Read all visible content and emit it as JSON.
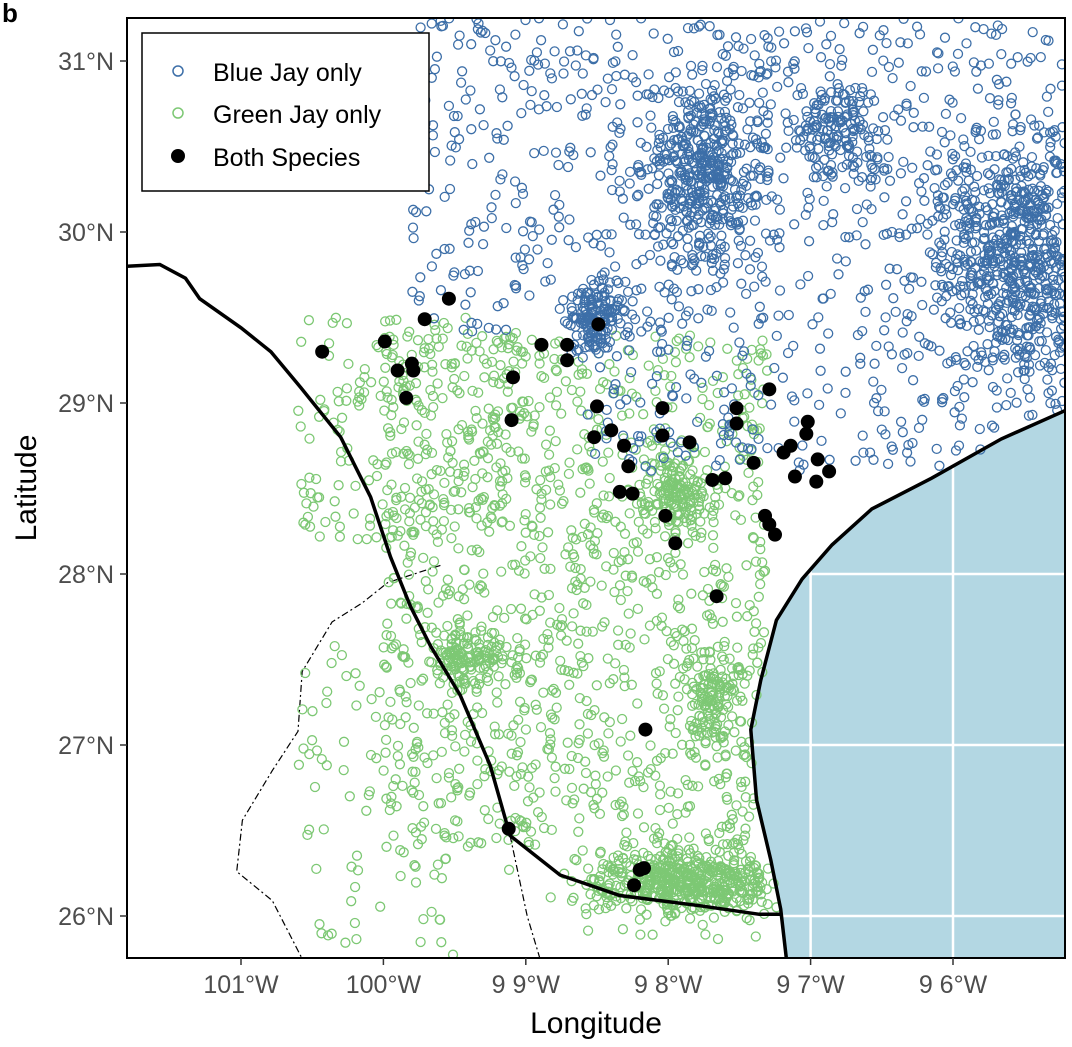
{
  "panel_label": "b",
  "chart_data": {
    "type": "scatter",
    "xlabel": "Longitude",
    "ylabel": "Latitude",
    "xlim": [
      -101.8,
      -95.2
    ],
    "ylim": [
      25.75,
      31.25
    ],
    "x_ticks": [
      {
        "value": -101,
        "label": "101°W"
      },
      {
        "value": -100,
        "label": "100°W"
      },
      {
        "value": -99,
        "label": "9 9°W"
      },
      {
        "value": -98,
        "label": "9 8°W"
      },
      {
        "value": -97,
        "label": "9 7°W"
      },
      {
        "value": -96,
        "label": "9 6°W"
      }
    ],
    "y_ticks": [
      {
        "value": 31,
        "label": "31°N"
      },
      {
        "value": 30,
        "label": "30°N"
      },
      {
        "value": 29,
        "label": "29°N"
      },
      {
        "value": 28,
        "label": "28°N"
      },
      {
        "value": 27,
        "label": "27°N"
      },
      {
        "value": 26,
        "label": "26°N"
      }
    ],
    "legend": {
      "placement": "top-left",
      "entries": [
        {
          "label": "Blue Jay only",
          "marker": "open-circle",
          "color": "#3d6fa8"
        },
        {
          "label": "Green Jay only",
          "marker": "open-circle",
          "color": "#7dc874"
        },
        {
          "label": "Both Species",
          "marker": "filled-circle",
          "color": "#000000"
        }
      ]
    },
    "colors": {
      "ocean": "#b3d7e3",
      "blue_jay": "#3d6fa8",
      "green_jay": "#7dc874",
      "both": "#000000"
    },
    "blue_jay_clusters": [
      {
        "lon": -98.5,
        "lat": 29.5,
        "sd_lon": 0.1,
        "sd_lat": 0.09,
        "n": 160
      },
      {
        "lon": -97.75,
        "lat": 30.35,
        "sd_lon": 0.22,
        "sd_lat": 0.28,
        "n": 450
      },
      {
        "lon": -95.5,
        "lat": 29.85,
        "sd_lon": 0.35,
        "sd_lat": 0.4,
        "n": 800
      },
      {
        "lon": -96.8,
        "lat": 30.6,
        "sd_lon": 0.15,
        "sd_lat": 0.15,
        "n": 150
      }
    ],
    "blue_jay_uniform": [
      {
        "lon": [
          -98.6,
          -95.2
        ],
        "lat": [
          28.6,
          31.25
        ],
        "n": 700
      },
      {
        "lon": [
          -99.8,
          -98.6
        ],
        "lat": [
          29.4,
          31.25
        ],
        "n": 180
      }
    ],
    "green_jay_clusters": [
      {
        "lon": -97.9,
        "lat": 26.2,
        "sd_lon": 0.35,
        "sd_lat": 0.1,
        "n": 550
      },
      {
        "lon": -97.7,
        "lat": 27.3,
        "sd_lon": 0.1,
        "sd_lat": 0.15,
        "n": 120
      },
      {
        "lon": -97.95,
        "lat": 28.45,
        "sd_lon": 0.12,
        "sd_lat": 0.12,
        "n": 150
      },
      {
        "lon": -99.4,
        "lat": 27.5,
        "sd_lon": 0.12,
        "sd_lat": 0.1,
        "n": 120
      }
    ],
    "green_jay_uniform": [
      {
        "lon": [
          -100.0,
          -97.3
        ],
        "lat": [
          26.4,
          29.4
        ],
        "n": 1100
      },
      {
        "lon": [
          -100.6,
          -99.0
        ],
        "lat": [
          28.2,
          29.5
        ],
        "n": 200
      },
      {
        "lon": [
          -100.6,
          -99.5
        ],
        "lat": [
          25.75,
          27.7
        ],
        "n": 90
      }
    ],
    "both_species": [
      [
        -100.43,
        29.3
      ],
      [
        -99.54,
        29.61
      ],
      [
        -99.71,
        29.49
      ],
      [
        -99.99,
        29.36
      ],
      [
        -99.9,
        29.19
      ],
      [
        -99.8,
        29.23
      ],
      [
        -99.79,
        29.19
      ],
      [
        -99.84,
        29.03
      ],
      [
        -98.49,
        29.46
      ],
      [
        -98.89,
        29.34
      ],
      [
        -98.71,
        29.34
      ],
      [
        -98.71,
        29.25
      ],
      [
        -99.09,
        29.15
      ],
      [
        -99.1,
        28.9
      ],
      [
        -98.5,
        28.98
      ],
      [
        -98.52,
        28.8
      ],
      [
        -98.4,
        28.84
      ],
      [
        -98.31,
        28.75
      ],
      [
        -98.28,
        28.63
      ],
      [
        -98.34,
        28.48
      ],
      [
        -98.25,
        28.47
      ],
      [
        -98.04,
        28.97
      ],
      [
        -98.04,
        28.81
      ],
      [
        -97.85,
        28.77
      ],
      [
        -98.02,
        28.34
      ],
      [
        -97.95,
        28.18
      ],
      [
        -97.69,
        28.55
      ],
      [
        -97.6,
        28.56
      ],
      [
        -97.52,
        28.97
      ],
      [
        -97.52,
        28.88
      ],
      [
        -97.4,
        28.65
      ],
      [
        -97.29,
        29.08
      ],
      [
        -97.19,
        28.71
      ],
      [
        -97.14,
        28.75
      ],
      [
        -97.03,
        28.82
      ],
      [
        -97.02,
        28.89
      ],
      [
        -96.95,
        28.67
      ],
      [
        -96.87,
        28.6
      ],
      [
        -97.11,
        28.57
      ],
      [
        -96.96,
        28.54
      ],
      [
        -97.32,
        28.34
      ],
      [
        -97.29,
        28.29
      ],
      [
        -97.25,
        28.23
      ],
      [
        -97.66,
        27.87
      ],
      [
        -98.16,
        27.09
      ],
      [
        -99.12,
        26.51
      ],
      [
        -98.2,
        26.27
      ],
      [
        -98.17,
        26.28
      ],
      [
        -98.24,
        26.18
      ]
    ],
    "coastline": [
      [
        -95.2,
        28.96
      ],
      [
        -95.66,
        28.79
      ],
      [
        -96.15,
        28.56
      ],
      [
        -96.57,
        28.38
      ],
      [
        -96.85,
        28.17
      ],
      [
        -97.06,
        27.97
      ],
      [
        -97.24,
        27.73
      ],
      [
        -97.35,
        27.38
      ],
      [
        -97.42,
        27.09
      ],
      [
        -97.38,
        26.68
      ],
      [
        -97.28,
        26.33
      ],
      [
        -97.21,
        26.04
      ],
      [
        -97.17,
        25.75
      ]
    ],
    "border": [
      [
        -101.8,
        29.8
      ],
      [
        -101.57,
        29.81
      ],
      [
        -101.39,
        29.73
      ],
      [
        -101.29,
        29.61
      ],
      [
        -101.0,
        29.44
      ],
      [
        -100.79,
        29.3
      ],
      [
        -100.58,
        29.09
      ],
      [
        -100.3,
        28.8
      ],
      [
        -100.09,
        28.45
      ],
      [
        -99.95,
        28.1
      ],
      [
        -99.81,
        27.81
      ],
      [
        -99.67,
        27.58
      ],
      [
        -99.46,
        27.29
      ],
      [
        -99.25,
        26.88
      ],
      [
        -99.11,
        26.47
      ],
      [
        -98.76,
        26.24
      ],
      [
        -98.34,
        26.12
      ],
      [
        -97.78,
        26.06
      ],
      [
        -97.36,
        26.01
      ],
      [
        -97.21,
        26.01
      ]
    ],
    "state_lines": [
      [
        [
          -99.6,
          28.05
        ],
        [
          -99.97,
          27.95
        ],
        [
          -100.15,
          27.83
        ],
        [
          -100.36,
          27.72
        ],
        [
          -100.57,
          27.43
        ],
        [
          -100.6,
          27.08
        ],
        [
          -100.78,
          26.85
        ],
        [
          -100.99,
          26.56
        ],
        [
          -101.03,
          26.26
        ],
        [
          -100.78,
          26.09
        ],
        [
          -100.57,
          25.75
        ]
      ],
      [
        [
          -99.11,
          26.47
        ],
        [
          -98.99,
          26.0
        ],
        [
          -98.9,
          25.75
        ]
      ]
    ]
  }
}
